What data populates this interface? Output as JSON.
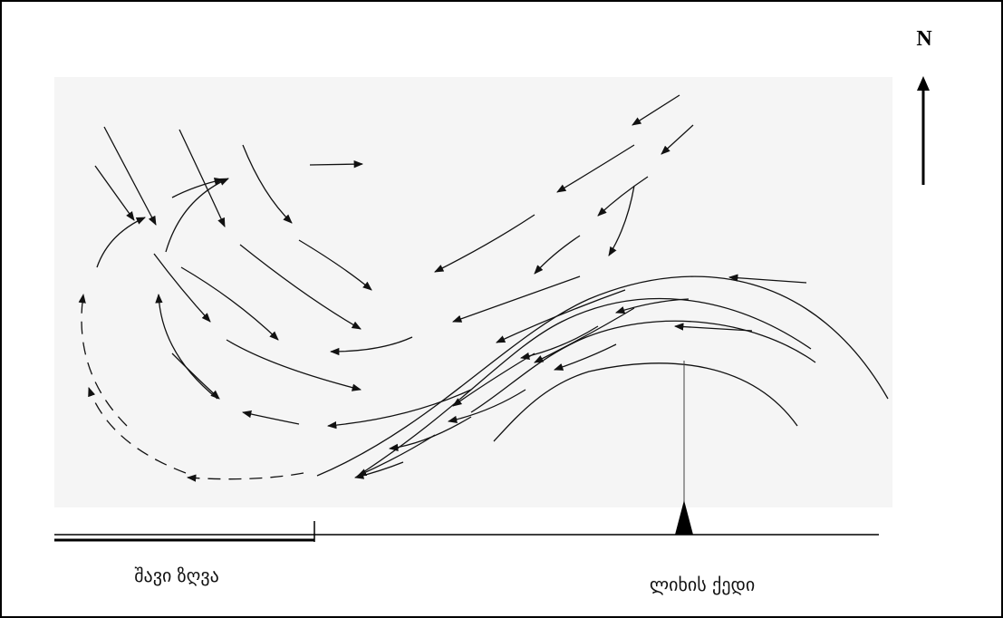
{
  "labels": {
    "north": "N",
    "sea": "შავი ზღვა",
    "ridge": "ლიხის ქედი"
  }
}
